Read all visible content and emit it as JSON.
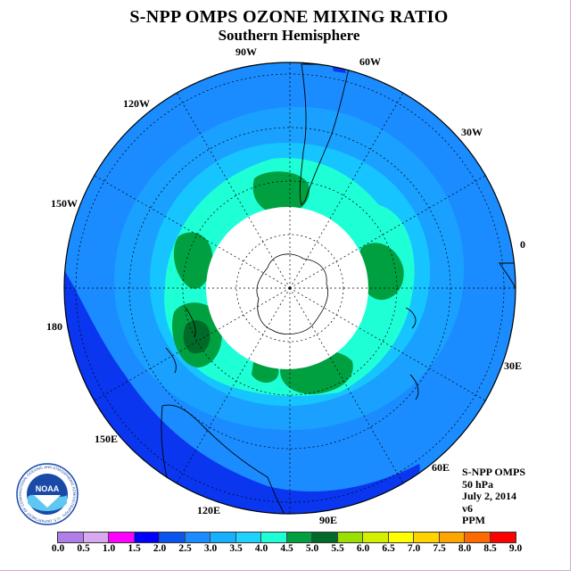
{
  "title": "S-NPP OMPS OZONE MIXING RATIO",
  "subtitle": "Southern Hemisphere",
  "longitude_labels": [
    "90W",
    "60W",
    "30W",
    "0",
    "30E",
    "60E",
    "90E",
    "120E",
    "150E",
    "180",
    "150W",
    "120W"
  ],
  "info": {
    "instrument": "S-NPP OMPS",
    "level": "50 hPa",
    "date": "July 2, 2014",
    "version": "v6",
    "units": "PPM"
  },
  "colorbar": {
    "ticks": [
      "0.0",
      "0.5",
      "1.0",
      "1.5",
      "2.0",
      "2.5",
      "3.0",
      "3.5",
      "4.0",
      "4.5",
      "5.0",
      "5.5",
      "6.0",
      "6.5",
      "7.0",
      "7.5",
      "8.0",
      "8.5",
      "9.0"
    ],
    "colors": [
      "#b07ee8",
      "#d9a9f0",
      "#ff00ff",
      "#0000ff",
      "#0a55ee",
      "#1a8cff",
      "#16b0ff",
      "#1ed2ff",
      "#1effd6",
      "#00a040",
      "#006a28",
      "#9be000",
      "#d2f000",
      "#ffff00",
      "#ffd200",
      "#ffa500",
      "#ff6a00",
      "#ff0000",
      "#8a4a3a"
    ]
  },
  "logo": {
    "name": "NOAA",
    "ring_text": "NATIONAL OCEANIC AND ATMOSPHERIC ADMINISTRATION · U.S. DEPARTMENT OF COMMERCE"
  },
  "colors": {
    "contour_1_5_2_0": "#0000ff",
    "contour_2_0_2_5": "#0a55ee",
    "contour_2_5_3_0": "#1a8cff",
    "contour_3_0_3_5": "#16b0ff",
    "contour_3_5_4_0": "#1effd6",
    "contour_4_0_4_5": "#00a040",
    "contour_4_5_5_0": "#006a28",
    "no_data": "#ffffff"
  }
}
